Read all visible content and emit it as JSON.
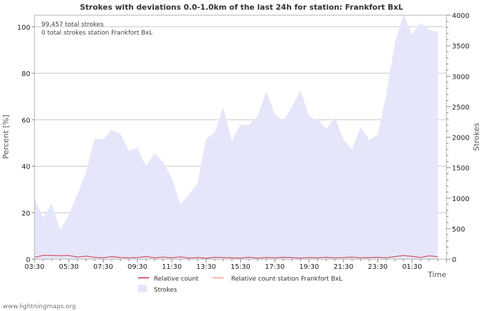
{
  "chart_data": {
    "type": "area",
    "title": "Strokes with deviations 0.0-1.0km of the last 24h for station: Frankfort BxL",
    "ylabel_left": "Percent   [%]",
    "ylabel_right": "Strokes",
    "xlabel": "Time",
    "left_axis": {
      "range": [
        0,
        105
      ],
      "ticks": [
        0,
        20,
        40,
        60,
        80,
        100
      ]
    },
    "right_axis": {
      "range": [
        0,
        4000
      ],
      "ticks": [
        0,
        500,
        1000,
        1500,
        2000,
        2500,
        3000,
        3500,
        4000
      ]
    },
    "x_tick_labels": [
      "03:30",
      "05:30",
      "07:30",
      "09:30",
      "11:30",
      "13:30",
      "15:30",
      "17:30",
      "19:30",
      "21:30",
      "23:30",
      "01:30"
    ],
    "annotations": [
      "99,457 total strokes",
      "0 total strokes station Frankfort BxL"
    ],
    "x_hours": [
      0,
      0.5,
      1,
      1.5,
      2,
      2.5,
      3,
      3.5,
      4,
      4.5,
      5,
      5.5,
      6,
      6.5,
      7,
      7.5,
      8,
      8.5,
      9,
      9.5,
      10,
      10.5,
      11,
      11.5,
      12,
      12.5,
      13,
      13.5,
      14,
      14.5,
      15,
      15.5,
      16,
      16.5,
      17,
      17.5,
      18,
      18.5,
      19,
      19.5,
      20,
      20.5,
      21,
      21.5,
      22,
      22.5,
      23,
      23.5
    ],
    "series": [
      {
        "name": "Strokes",
        "axis": "right",
        "color": "#e6e6fa",
        "values": [
          1000,
          680,
          910,
          480,
          730,
          1060,
          1420,
          1980,
          1960,
          2120,
          2060,
          1780,
          1820,
          1530,
          1740,
          1590,
          1330,
          900,
          1060,
          1250,
          1980,
          2080,
          2490,
          1930,
          2210,
          2200,
          2350,
          2750,
          2380,
          2260,
          2500,
          2770,
          2340,
          2280,
          2140,
          2330,
          1960,
          1800,
          2170,
          1950,
          2050,
          2700,
          3560,
          4010,
          3680,
          3870,
          3760,
          3730
        ]
      },
      {
        "name": "Relative count",
        "axis": "left",
        "color": "#cc3344",
        "values": [
          0.8,
          1.6,
          1.6,
          1.5,
          1.6,
          0.9,
          1.3,
          0.8,
          0.6,
          1.1,
          0.7,
          0.6,
          0.7,
          1.1,
          0.6,
          0.9,
          0.6,
          1.0,
          0.5,
          0.7,
          0.4,
          0.8,
          0.7,
          0.6,
          0.5,
          0.8,
          0.5,
          0.7,
          0.6,
          0.8,
          0.7,
          0.5,
          0.7,
          0.6,
          0.8,
          0.6,
          0.7,
          0.9,
          0.6,
          0.7,
          0.8,
          0.6,
          1.1,
          1.6,
          1.2,
          0.7,
          1.5,
          1.0
        ]
      },
      {
        "name": "Relative count station Frankfort BxL",
        "axis": "left",
        "color": "#f0a080",
        "values": [
          0,
          0,
          0,
          0,
          0,
          0,
          0,
          0,
          0,
          0,
          0,
          0,
          0,
          0,
          0,
          0,
          0,
          0,
          0,
          0,
          0,
          0,
          0,
          0,
          0,
          0,
          0,
          0,
          0,
          0,
          0,
          0,
          0,
          0,
          0,
          0,
          0,
          0,
          0,
          0,
          0,
          0,
          0,
          0,
          0,
          0,
          0,
          0
        ]
      }
    ],
    "legend": {
      "relative_count": "Relative count",
      "relative_count_station": "Relative count station Frankfort BxL",
      "strokes": "Strokes"
    }
  },
  "footer": "www.lightningmaps.org"
}
